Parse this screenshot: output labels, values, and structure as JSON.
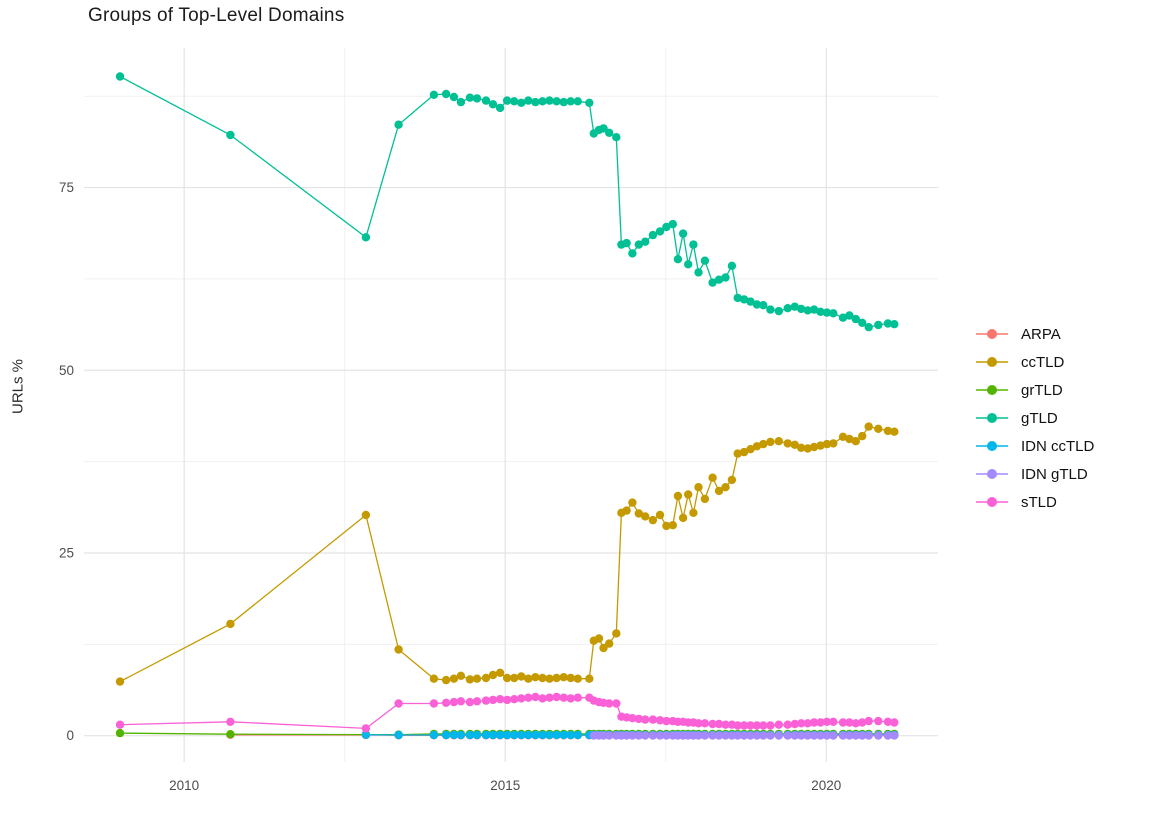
{
  "chart_data": {
    "type": "line",
    "title": "Groups of Top-Level Domains",
    "xlabel": "",
    "ylabel": "URLs %",
    "legend_position": "right",
    "grid": "on",
    "xlim": [
      2008.44,
      2021.74
    ],
    "ylim": [
      -3.6,
      94.1
    ],
    "x_ticks": [
      2010,
      2015,
      2020
    ],
    "x_tick_labels": [
      "2010",
      "2015",
      "2020"
    ],
    "x_minor_ticks": [
      2012.5,
      2017.5
    ],
    "y_ticks": [
      0,
      25,
      50,
      75
    ],
    "y_tick_labels": [
      "0",
      "25",
      "50",
      "75"
    ],
    "y_minor_ticks": [
      12.5,
      37.5,
      62.5,
      87.5
    ],
    "style": {
      "background": "#ffffff",
      "grid_major_color": "#e4e4e4",
      "grid_minor_color": "#f1f1f1",
      "axis_text_color": "#4d4d4d",
      "title_color": "#1c1c1c",
      "point_radius": 4.2,
      "line_width": 1.3
    },
    "x_dense": [
      2013.89,
      2014.08,
      2014.2,
      2014.31,
      2014.45,
      2014.56,
      2014.7,
      2014.81,
      2014.92,
      2015.03,
      2015.14,
      2015.25,
      2015.36,
      2015.47,
      2015.58,
      2015.69,
      2015.8,
      2015.91,
      2016.02,
      2016.13,
      2016.31,
      2016.38,
      2016.46,
      2016.53,
      2016.62,
      2016.73,
      2016.81,
      2016.89,
      2016.98,
      2017.08,
      2017.18,
      2017.3,
      2017.41,
      2017.51,
      2017.61,
      2017.69,
      2017.77,
      2017.85,
      2017.93,
      2018.01,
      2018.11,
      2018.23,
      2018.33,
      2018.43,
      2018.53,
      2018.62,
      2018.72,
      2018.82,
      2018.92,
      2019.02,
      2019.13,
      2019.26,
      2019.4,
      2019.51,
      2019.61,
      2019.71,
      2019.81,
      2019.91,
      2020.01,
      2020.11,
      2020.26,
      2020.36,
      2020.46,
      2020.56,
      2020.66,
      2020.81,
      2020.96,
      2021.06
    ],
    "series": [
      {
        "name": "ARPA",
        "color": "#F8766D",
        "early": [
          [
            2010.72,
            0.12
          ],
          [
            2012.83,
            0.1
          ],
          [
            2013.34,
            0.06
          ]
        ],
        "dense_const": 0.06
      },
      {
        "name": "ccTLD",
        "color": "#C49A00",
        "early": [
          [
            2009.0,
            7.4
          ],
          [
            2010.72,
            15.3
          ],
          [
            2012.83,
            30.2
          ],
          [
            2013.34,
            11.8
          ]
        ],
        "dense": [
          7.8,
          7.6,
          7.8,
          8.2,
          7.7,
          7.8,
          7.9,
          8.3,
          8.6,
          7.9,
          7.9,
          8.1,
          7.8,
          8.0,
          7.9,
          7.8,
          7.9,
          8.0,
          7.9,
          7.8,
          7.8,
          13.0,
          13.3,
          12.0,
          12.6,
          14.0,
          30.5,
          30.8,
          31.9,
          30.4,
          30.0,
          29.5,
          30.2,
          28.7,
          28.8,
          32.8,
          29.8,
          33.0,
          30.5,
          34.0,
          32.4,
          35.3,
          33.5,
          34.0,
          35.0,
          38.6,
          38.8,
          39.2,
          39.6,
          39.9,
          40.2,
          40.3,
          40.0,
          39.8,
          39.4,
          39.3,
          39.5,
          39.7,
          39.9,
          40.0,
          40.9,
          40.6,
          40.3,
          41.0,
          42.3,
          42.0,
          41.7,
          41.6
        ]
      },
      {
        "name": "grTLD",
        "color": "#53B400",
        "early": [
          [
            2009.0,
            0.35
          ],
          [
            2010.72,
            0.2
          ],
          [
            2012.83,
            0.15
          ],
          [
            2013.34,
            0.15
          ]
        ],
        "dense_const": 0.25
      },
      {
        "name": "gTLD",
        "color": "#00C094",
        "early": [
          [
            2009.0,
            90.2
          ],
          [
            2010.72,
            82.2
          ],
          [
            2012.83,
            68.2
          ],
          [
            2013.34,
            83.6
          ]
        ],
        "dense": [
          87.7,
          87.8,
          87.4,
          86.7,
          87.3,
          87.2,
          86.9,
          86.4,
          85.9,
          86.9,
          86.8,
          86.6,
          86.9,
          86.7,
          86.8,
          86.9,
          86.8,
          86.7,
          86.8,
          86.8,
          86.6,
          82.4,
          82.9,
          83.1,
          82.5,
          81.9,
          67.2,
          67.4,
          66.0,
          67.2,
          67.6,
          68.5,
          69.0,
          69.6,
          70.0,
          65.2,
          68.7,
          64.5,
          67.2,
          63.4,
          65.0,
          62.0,
          62.4,
          62.7,
          64.3,
          59.9,
          59.7,
          59.4,
          59.0,
          58.9,
          58.3,
          58.1,
          58.5,
          58.7,
          58.4,
          58.2,
          58.3,
          58.0,
          57.9,
          57.8,
          57.2,
          57.5,
          57.0,
          56.5,
          55.9,
          56.2,
          56.4,
          56.3
        ]
      },
      {
        "name": "IDN ccTLD",
        "color": "#00B6EB",
        "early": [
          [
            2012.83,
            0.12
          ],
          [
            2013.34,
            0.1
          ]
        ],
        "dense_const": 0.1
      },
      {
        "name": "IDN gTLD",
        "color": "#A58AFF",
        "early": [],
        "dense_from": 2016.38,
        "dense_const": 0.02
      },
      {
        "name": "sTLD",
        "color": "#FB61D7",
        "early": [
          [
            2009.0,
            1.5
          ],
          [
            2010.72,
            1.9
          ],
          [
            2012.83,
            1.0
          ],
          [
            2013.34,
            4.4
          ]
        ],
        "dense": [
          4.4,
          4.5,
          4.6,
          4.7,
          4.6,
          4.7,
          4.8,
          4.9,
          5.0,
          4.9,
          5.0,
          5.1,
          5.2,
          5.3,
          5.1,
          5.2,
          5.3,
          5.2,
          5.1,
          5.2,
          5.2,
          4.8,
          4.6,
          4.5,
          4.4,
          4.4,
          2.6,
          2.5,
          2.4,
          2.3,
          2.2,
          2.2,
          2.1,
          2.0,
          2.0,
          1.9,
          1.9,
          1.8,
          1.8,
          1.7,
          1.7,
          1.6,
          1.6,
          1.5,
          1.5,
          1.4,
          1.4,
          1.4,
          1.4,
          1.4,
          1.4,
          1.5,
          1.5,
          1.6,
          1.7,
          1.7,
          1.8,
          1.8,
          1.9,
          1.9,
          1.8,
          1.8,
          1.7,
          1.8,
          2.0,
          2.0,
          1.9,
          1.8
        ]
      }
    ]
  }
}
